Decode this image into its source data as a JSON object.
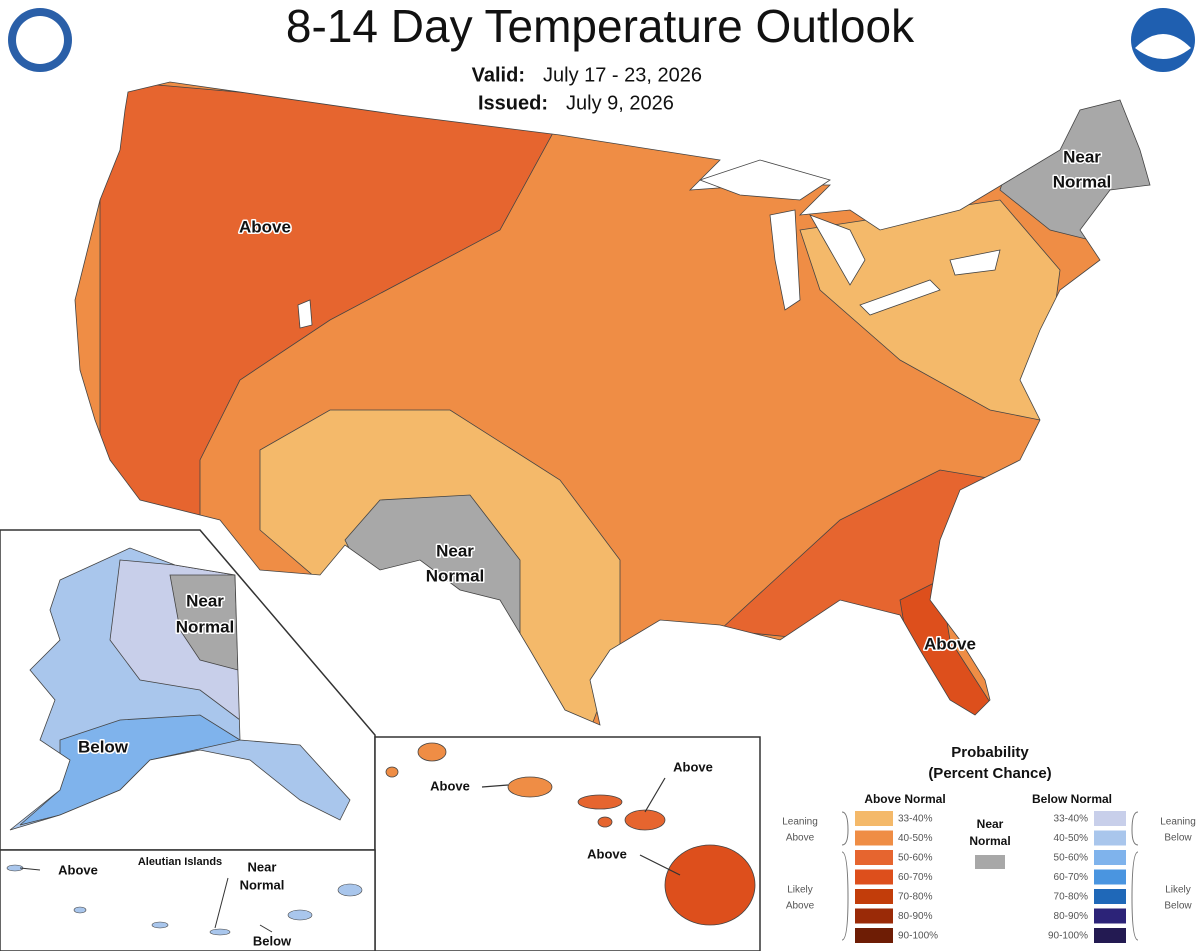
{
  "header": {
    "title": "8-14 Day Temperature Outlook",
    "valid_label": "Valid:",
    "valid": "July 17 - 23, 2026",
    "issued_label": "Issued:",
    "issued": "July 9, 2026"
  },
  "map": {
    "conus_labels": [
      [
        "Above"
      ],
      [
        "Near",
        "Normal"
      ],
      [
        "Near",
        "Normal"
      ],
      [
        "Above"
      ]
    ],
    "alaska_labels": [
      [
        "Near",
        "Normal"
      ],
      [
        "Below"
      ]
    ],
    "hawaii_labels": [
      "Above",
      "Above",
      "Above"
    ],
    "aleutian_title": "Aleutian Islands",
    "aleutian_labels": [
      [
        "Above"
      ],
      [
        "Near",
        "Normal"
      ],
      [
        "Below"
      ]
    ]
  },
  "legend": {
    "title": [
      "Probability",
      "(Percent Chance)"
    ],
    "above_heading": "Above Normal",
    "below_heading": "Below Normal",
    "near": [
      "Near",
      "Normal"
    ],
    "leaning_above": [
      "Leaning",
      "Above"
    ],
    "likely_above": [
      "Likely",
      "Above"
    ],
    "leaning_below": [
      "Leaning",
      "Below"
    ],
    "likely_below": [
      "Likely",
      "Below"
    ],
    "bins": [
      "33-40%",
      "40-50%",
      "50-60%",
      "60-70%",
      "70-80%",
      "80-90%",
      "90-100%"
    ],
    "above_colors": [
      "#f4b96a",
      "#ef8d45",
      "#e6652f",
      "#dd4f1c",
      "#c23d0a",
      "#9a2a07",
      "#6e1d05"
    ],
    "below_colors": [
      "#c8cfea",
      "#a9c6ec",
      "#7fb3ec",
      "#4a95e0",
      "#1f68b8",
      "#2c2378",
      "#231a52"
    ],
    "near_color": "#a8a8a8"
  }
}
